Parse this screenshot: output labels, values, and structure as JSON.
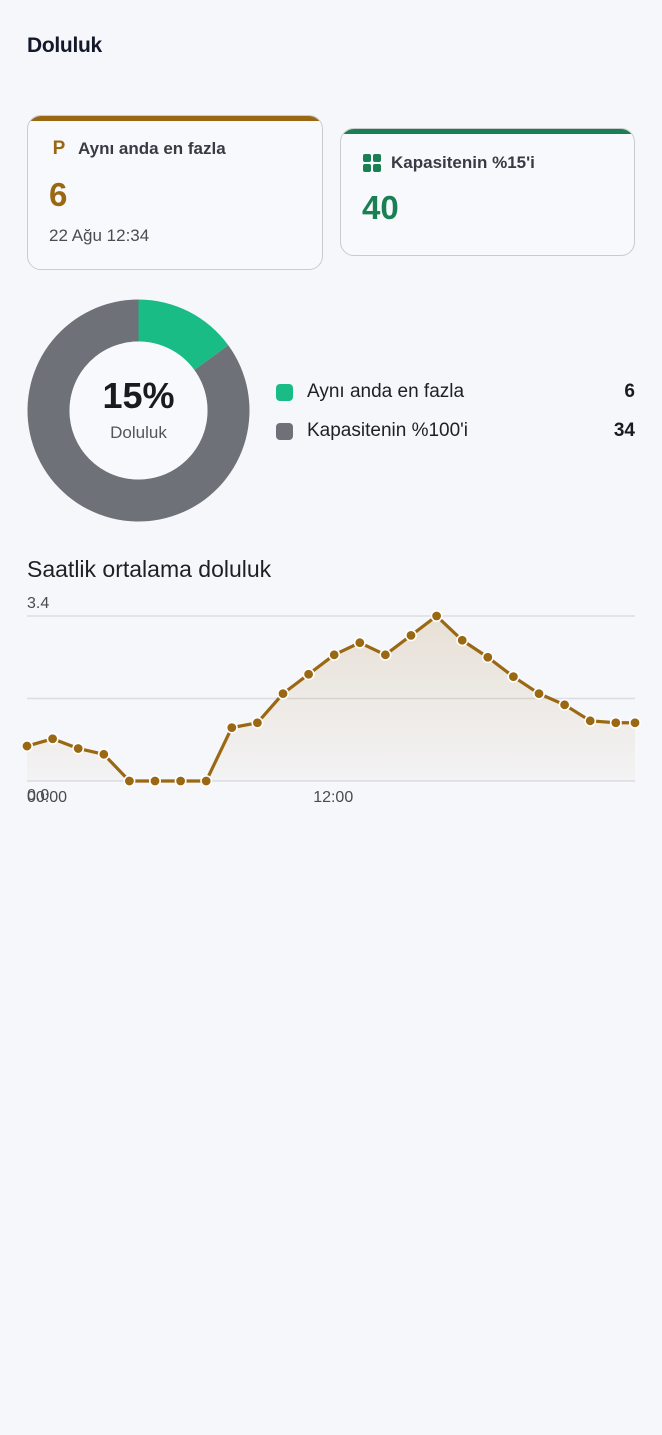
{
  "page": {
    "title": "Doluluk"
  },
  "colors": {
    "brown": "#9a6812",
    "green": "#1a7f52",
    "teal": "#1abc85",
    "gray": "#6f7178",
    "card_border": "#c9cbd1"
  },
  "cards": {
    "peak": {
      "icon": "parking-p-icon",
      "icon_glyph": "P",
      "label": "Aynı anda en fazla",
      "value": "6",
      "timestamp": "22 Ağu 12:34"
    },
    "capacity": {
      "icon": "grid-icon",
      "label": "Kapasitenin %15'i",
      "value": "40"
    }
  },
  "donut": {
    "percent_label": "15%",
    "caption": "Doluluk",
    "segments": [
      {
        "label": "Aynı anda en fazla",
        "value": 6,
        "display": "6",
        "color": "#1abc85"
      },
      {
        "label": "Kapasitenin %100'i",
        "value": 34,
        "display": "34",
        "color": "#6f7178"
      }
    ]
  },
  "hourly": {
    "title": "Saatlik ortalama doluluk"
  },
  "chart_data": {
    "type": "area",
    "title": "Saatlik ortalama doluluk",
    "xlabel": "",
    "ylabel": "",
    "ylim": [
      0,
      3.4
    ],
    "y_ticks": [
      "3.4",
      "0.0"
    ],
    "x_ticks": [
      {
        "label": "00:00",
        "x": 0
      },
      {
        "label": "12:00",
        "x": 12
      }
    ],
    "xlim": [
      0,
      23.75
    ],
    "grid": true,
    "series": [
      {
        "color": "#9a6812",
        "x": [
          0,
          1,
          2,
          3,
          4,
          5,
          6,
          7,
          8,
          9,
          10,
          11,
          12,
          13,
          14,
          15,
          16,
          17,
          18,
          19,
          20,
          21,
          22,
          23,
          23.75
        ],
        "values": [
          0.72,
          0.87,
          0.67,
          0.55,
          0.0,
          0.0,
          0.0,
          0.0,
          1.1,
          1.2,
          1.8,
          2.2,
          2.6,
          2.85,
          2.6,
          3.0,
          3.4,
          2.9,
          2.55,
          2.15,
          1.8,
          1.57,
          1.24,
          1.2,
          1.2
        ]
      }
    ]
  }
}
